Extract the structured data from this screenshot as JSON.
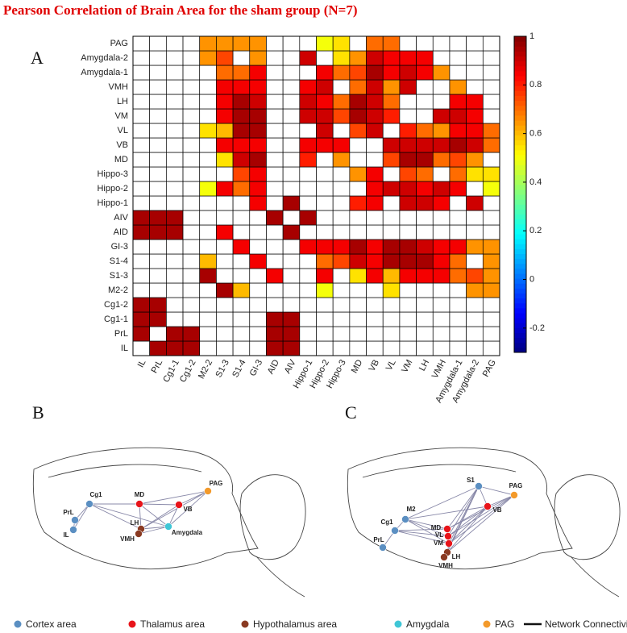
{
  "title": "Pearson Correlation of Brain Area for the sham group (N=7)",
  "panels": [
    "A",
    "B",
    "C"
  ],
  "chart_data": {
    "type": "heatmap",
    "categories": [
      "IL",
      "PrL",
      "Cg1-1",
      "Cg1-2",
      "M2-2",
      "S1-3",
      "S1-4",
      "GI-3",
      "AID",
      "AIV",
      "Hippo-1",
      "Hippo-2",
      "Hippo-3",
      "MD",
      "VB",
      "VL",
      "VM",
      "LH",
      "VMH",
      "Amygdala-1",
      "Amygdala-2",
      "PAG"
    ],
    "values": [
      [
        null,
        0.95,
        0.95,
        0.95,
        null,
        null,
        null,
        null,
        0.95,
        0.95,
        null,
        null,
        null,
        null,
        null,
        null,
        null,
        null,
        null,
        null,
        null,
        null
      ],
      [
        0.95,
        null,
        0.95,
        0.95,
        null,
        null,
        null,
        null,
        0.95,
        0.95,
        null,
        null,
        null,
        null,
        null,
        null,
        null,
        null,
        null,
        null,
        null,
        null
      ],
      [
        0.95,
        0.95,
        null,
        null,
        null,
        null,
        null,
        null,
        0.95,
        0.95,
        null,
        null,
        null,
        null,
        null,
        null,
        null,
        null,
        null,
        null,
        null,
        null
      ],
      [
        0.95,
        0.95,
        null,
        null,
        null,
        null,
        null,
        null,
        null,
        null,
        null,
        null,
        null,
        null,
        null,
        null,
        null,
        null,
        null,
        null,
        null,
        null
      ],
      [
        null,
        null,
        null,
        null,
        null,
        0.95,
        0.6,
        null,
        null,
        null,
        null,
        0.5,
        null,
        null,
        null,
        0.55,
        null,
        null,
        null,
        null,
        0.65,
        0.65
      ],
      [
        null,
        null,
        null,
        null,
        0.95,
        null,
        null,
        null,
        0.85,
        null,
        null,
        0.85,
        null,
        0.55,
        0.85,
        0.6,
        0.85,
        0.85,
        0.85,
        0.7,
        0.75,
        0.65
      ],
      [
        null,
        null,
        null,
        null,
        0.6,
        null,
        null,
        0.85,
        null,
        null,
        null,
        0.7,
        0.75,
        0.9,
        0.85,
        0.95,
        0.95,
        0.95,
        0.85,
        0.7,
        null,
        0.65
      ],
      [
        null,
        null,
        null,
        null,
        null,
        null,
        0.85,
        null,
        null,
        null,
        0.85,
        0.85,
        0.85,
        0.95,
        0.85,
        0.95,
        0.95,
        0.9,
        0.85,
        0.85,
        0.65,
        0.65
      ],
      [
        0.95,
        0.95,
        0.95,
        null,
        null,
        0.85,
        null,
        null,
        null,
        0.95,
        null,
        null,
        null,
        null,
        null,
        null,
        null,
        null,
        null,
        null,
        null,
        null
      ],
      [
        0.95,
        0.95,
        0.95,
        null,
        null,
        null,
        null,
        null,
        0.95,
        null,
        0.95,
        null,
        null,
        null,
        null,
        null,
        null,
        null,
        null,
        null,
        null,
        null
      ],
      [
        null,
        null,
        null,
        null,
        null,
        null,
        null,
        0.85,
        null,
        0.95,
        null,
        null,
        null,
        0.8,
        0.85,
        null,
        0.9,
        0.9,
        0.85,
        null,
        0.9,
        null
      ],
      [
        null,
        null,
        null,
        null,
        0.5,
        0.85,
        0.7,
        0.85,
        null,
        null,
        null,
        null,
        null,
        null,
        0.85,
        0.9,
        0.9,
        0.85,
        0.9,
        0.85,
        null,
        0.5
      ],
      [
        null,
        null,
        null,
        null,
        null,
        null,
        0.75,
        0.85,
        null,
        null,
        null,
        null,
        null,
        0.65,
        0.85,
        null,
        0.75,
        0.7,
        null,
        0.7,
        0.55,
        0.55
      ],
      [
        null,
        null,
        null,
        null,
        null,
        0.55,
        0.9,
        0.95,
        null,
        null,
        0.8,
        null,
        0.65,
        null,
        null,
        0.75,
        0.95,
        0.95,
        0.7,
        0.75,
        0.65,
        null
      ],
      [
        null,
        null,
        null,
        null,
        null,
        0.85,
        0.85,
        0.85,
        null,
        null,
        0.85,
        0.85,
        0.85,
        null,
        null,
        0.9,
        0.9,
        0.9,
        0.9,
        0.95,
        0.9,
        0.7
      ],
      [
        null,
        null,
        null,
        null,
        0.55,
        0.6,
        0.95,
        0.95,
        null,
        null,
        null,
        0.9,
        null,
        0.75,
        0.9,
        null,
        0.8,
        0.7,
        0.65,
        0.85,
        0.85,
        0.7
      ],
      [
        null,
        null,
        null,
        null,
        null,
        0.85,
        0.95,
        0.95,
        null,
        null,
        0.9,
        0.9,
        0.75,
        0.95,
        0.9,
        0.8,
        null,
        null,
        0.9,
        0.9,
        0.85,
        null
      ],
      [
        null,
        null,
        null,
        null,
        null,
        0.85,
        0.95,
        0.9,
        null,
        null,
        0.9,
        0.85,
        0.7,
        0.95,
        0.9,
        0.7,
        null,
        null,
        null,
        0.85,
        0.85,
        null
      ],
      [
        null,
        null,
        null,
        null,
        null,
        0.85,
        0.85,
        0.85,
        null,
        null,
        0.85,
        0.9,
        null,
        0.7,
        0.9,
        0.65,
        0.9,
        null,
        null,
        0.65,
        null,
        null
      ],
      [
        null,
        null,
        null,
        null,
        null,
        0.7,
        0.7,
        0.85,
        null,
        null,
        null,
        0.85,
        0.7,
        0.75,
        0.95,
        0.85,
        0.9,
        0.85,
        0.65,
        null,
        null,
        null
      ],
      [
        null,
        null,
        null,
        null,
        0.65,
        0.75,
        null,
        0.65,
        null,
        null,
        0.9,
        null,
        0.55,
        0.65,
        0.9,
        0.85,
        0.85,
        0.85,
        null,
        null,
        null,
        null
      ],
      [
        null,
        null,
        null,
        null,
        0.65,
        0.65,
        0.65,
        0.65,
        null,
        null,
        null,
        0.5,
        0.55,
        null,
        0.7,
        0.7,
        null,
        null,
        null,
        null,
        null,
        null
      ]
    ],
    "colormap": "jet",
    "zlim": [
      -0.3,
      1
    ],
    "zticks": [
      -0.2,
      0,
      0.2,
      0.4,
      0.6,
      0.8,
      1
    ]
  },
  "diagram_b": {
    "nodes": [
      {
        "label": "Cg1",
        "group": 0
      },
      {
        "label": "PrL",
        "group": 0
      },
      {
        "label": "IL",
        "group": 0
      },
      {
        "label": "MD",
        "group": 1
      },
      {
        "label": "VB",
        "group": 1
      },
      {
        "label": "PAG",
        "group": 4
      },
      {
        "label": "LH",
        "group": 2
      },
      {
        "label": "VMH",
        "group": 2
      },
      {
        "label": "Amygdala",
        "group": 3
      }
    ]
  },
  "diagram_c": {
    "nodes": [
      {
        "label": "M2",
        "group": 0
      },
      {
        "label": "S1",
        "group": 0
      },
      {
        "label": "PAG",
        "group": 4
      },
      {
        "label": "Cg1",
        "group": 0
      },
      {
        "label": "PrL",
        "group": 0
      },
      {
        "label": "MD",
        "group": 1
      },
      {
        "label": "VL",
        "group": 1
      },
      {
        "label": "VM",
        "group": 1
      },
      {
        "label": "VB",
        "group": 1
      },
      {
        "label": "LH",
        "group": 2
      },
      {
        "label": "VMH",
        "group": 2
      }
    ]
  },
  "legend": [
    {
      "label": "Cortex area",
      "color": "#5b8fc2"
    },
    {
      "label": "Thalamus area",
      "color": "#e8141a"
    },
    {
      "label": "Hypothalamus area",
      "color": "#8a3a22"
    },
    {
      "label": "Amygdala",
      "color": "#3fc6d6"
    },
    {
      "label": "PAG",
      "color": "#f39a2b"
    },
    {
      "label": "Network Connectivity",
      "color": "#111111"
    }
  ]
}
